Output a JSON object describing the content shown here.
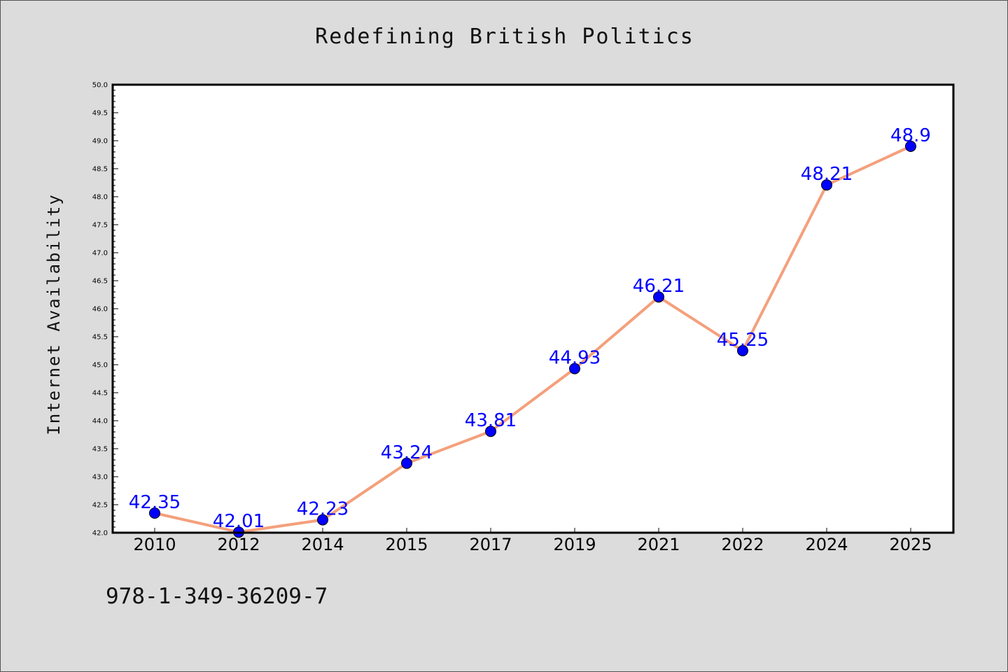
{
  "chart_data": {
    "type": "line",
    "title": "Redefining British Politics",
    "xlabel": "",
    "ylabel": "Internet Availability",
    "categories": [
      "2010",
      "2012",
      "2014",
      "2015",
      "2017",
      "2019",
      "2021",
      "2022",
      "2024",
      "2025"
    ],
    "series": [
      {
        "values": [
          42.35,
          42.01,
          42.23,
          43.24,
          43.81,
          44.93,
          46.21,
          45.25,
          48.21,
          48.9
        ],
        "data_labels": [
          "42.35",
          "42.01",
          "42.23",
          "43.24",
          "43.81",
          "44.93",
          "46.21",
          "45.25",
          "48.21",
          "48.9"
        ],
        "line_color": "#f4a07c",
        "marker_color": "#0000ff"
      }
    ],
    "ylim": [
      42.0,
      50.0
    ],
    "yticks": [
      "42.0",
      "42.5",
      "43.0",
      "43.5",
      "44.0",
      "44.5",
      "45.0",
      "45.5",
      "46.0",
      "46.5",
      "47.0",
      "47.5",
      "48.0",
      "48.5",
      "49.0",
      "49.5",
      "50.0"
    ],
    "grid": false,
    "legend": "none"
  },
  "footer": {
    "isbn": "978-1-349-36209-7"
  },
  "colors": {
    "background": "#dcdcdc",
    "plot_background": "#ffffff",
    "line": "#f4a07c",
    "marker": "#0000ff",
    "data_label": "#0000ff"
  }
}
